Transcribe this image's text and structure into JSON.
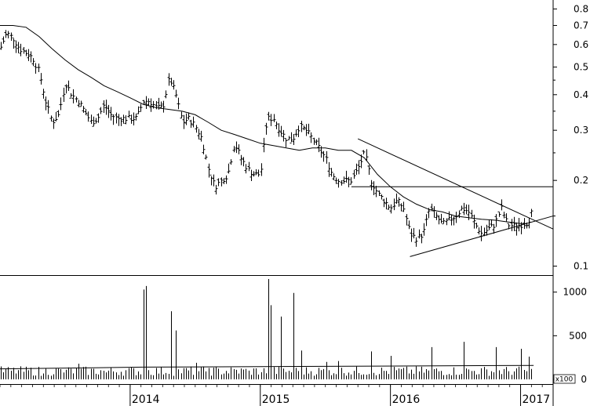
{
  "chart_data": {
    "type": "ohlc",
    "price_axis": {
      "scale": "log",
      "range": [
        0.093,
        0.86
      ],
      "ticks": [
        {
          "value": 0.1,
          "label": "0.1"
        },
        {
          "value": 0.2,
          "label": "0.2"
        },
        {
          "value": 0.3,
          "label": "0.3"
        },
        {
          "value": 0.4,
          "label": "0.4"
        },
        {
          "value": 0.5,
          "label": "0.5"
        },
        {
          "value": 0.6,
          "label": "0.6"
        },
        {
          "value": 0.7,
          "label": "0.7"
        },
        {
          "value": 0.8,
          "label": "0.8"
        }
      ]
    },
    "volume_axis": {
      "range": [
        0,
        1150
      ],
      "ticks": [
        {
          "value": 0,
          "label": "0"
        },
        {
          "value": 500,
          "label": "500"
        },
        {
          "value": 1000,
          "label": "1000"
        }
      ],
      "multiplier_label": "x100"
    },
    "time_axis": {
      "start": 2013.0,
      "end": 2017.25,
      "year_labels": [
        {
          "value": 2014,
          "label": "2014"
        },
        {
          "value": 2015,
          "label": "2015"
        },
        {
          "value": 2016,
          "label": "2016"
        },
        {
          "value": 2017,
          "label": "2017"
        }
      ]
    },
    "close_series": [
      [
        2013.0,
        0.58
      ],
      [
        2013.05,
        0.66
      ],
      [
        2013.1,
        0.63
      ],
      [
        2013.15,
        0.58
      ],
      [
        2013.2,
        0.56
      ],
      [
        2013.25,
        0.54
      ],
      [
        2013.3,
        0.48
      ],
      [
        2013.35,
        0.38
      ],
      [
        2013.4,
        0.32
      ],
      [
        2013.45,
        0.34
      ],
      [
        2013.5,
        0.44
      ],
      [
        2013.55,
        0.4
      ],
      [
        2013.6,
        0.38
      ],
      [
        2013.65,
        0.35
      ],
      [
        2013.7,
        0.32
      ],
      [
        2013.75,
        0.33
      ],
      [
        2013.8,
        0.37
      ],
      [
        2013.85,
        0.34
      ],
      [
        2013.9,
        0.33
      ],
      [
        2013.95,
        0.33
      ],
      [
        2014.0,
        0.33
      ],
      [
        2014.05,
        0.33
      ],
      [
        2014.1,
        0.38
      ],
      [
        2014.15,
        0.38
      ],
      [
        2014.2,
        0.36
      ],
      [
        2014.25,
        0.36
      ],
      [
        2014.3,
        0.46
      ],
      [
        2014.35,
        0.4
      ],
      [
        2014.4,
        0.32
      ],
      [
        2014.45,
        0.33
      ],
      [
        2014.5,
        0.31
      ],
      [
        2014.55,
        0.28
      ],
      [
        2014.6,
        0.22
      ],
      [
        2014.65,
        0.19
      ],
      [
        2014.7,
        0.2
      ],
      [
        2014.75,
        0.21
      ],
      [
        2014.8,
        0.27
      ],
      [
        2014.85,
        0.24
      ],
      [
        2014.9,
        0.22
      ],
      [
        2014.95,
        0.21
      ],
      [
        2015.0,
        0.21
      ],
      [
        2015.05,
        0.33
      ],
      [
        2015.1,
        0.33
      ],
      [
        2015.15,
        0.3
      ],
      [
        2015.2,
        0.28
      ],
      [
        2015.25,
        0.28
      ],
      [
        2015.3,
        0.31
      ],
      [
        2015.35,
        0.3
      ],
      [
        2015.4,
        0.28
      ],
      [
        2015.45,
        0.26
      ],
      [
        2015.5,
        0.24
      ],
      [
        2015.55,
        0.21
      ],
      [
        2015.6,
        0.2
      ],
      [
        2015.65,
        0.2
      ],
      [
        2015.7,
        0.2
      ],
      [
        2015.75,
        0.22
      ],
      [
        2015.8,
        0.25
      ],
      [
        2015.85,
        0.2
      ],
      [
        2015.9,
        0.18
      ],
      [
        2015.95,
        0.17
      ],
      [
        2016.0,
        0.16
      ],
      [
        2016.05,
        0.17
      ],
      [
        2016.1,
        0.16
      ],
      [
        2016.15,
        0.13
      ],
      [
        2016.2,
        0.125
      ],
      [
        2016.25,
        0.13
      ],
      [
        2016.3,
        0.16
      ],
      [
        2016.35,
        0.15
      ],
      [
        2016.4,
        0.14
      ],
      [
        2016.45,
        0.145
      ],
      [
        2016.5,
        0.15
      ],
      [
        2016.55,
        0.16
      ],
      [
        2016.6,
        0.155
      ],
      [
        2016.65,
        0.14
      ],
      [
        2016.7,
        0.13
      ],
      [
        2016.75,
        0.135
      ],
      [
        2016.8,
        0.14
      ],
      [
        2016.85,
        0.16
      ],
      [
        2016.9,
        0.14
      ],
      [
        2016.95,
        0.138
      ],
      [
        2017.0,
        0.14
      ],
      [
        2017.05,
        0.142
      ],
      [
        2017.1,
        0.16
      ]
    ],
    "moving_average": [
      [
        2013.0,
        0.7
      ],
      [
        2013.1,
        0.7
      ],
      [
        2013.2,
        0.69
      ],
      [
        2013.3,
        0.64
      ],
      [
        2013.4,
        0.58
      ],
      [
        2013.5,
        0.53
      ],
      [
        2013.6,
        0.49
      ],
      [
        2013.7,
        0.46
      ],
      [
        2013.8,
        0.43
      ],
      [
        2013.9,
        0.41
      ],
      [
        2014.0,
        0.39
      ],
      [
        2014.1,
        0.37
      ],
      [
        2014.2,
        0.36
      ],
      [
        2014.3,
        0.355
      ],
      [
        2014.4,
        0.35
      ],
      [
        2014.5,
        0.34
      ],
      [
        2014.6,
        0.32
      ],
      [
        2014.7,
        0.3
      ],
      [
        2014.8,
        0.29
      ],
      [
        2014.9,
        0.28
      ],
      [
        2015.0,
        0.27
      ],
      [
        2015.1,
        0.265
      ],
      [
        2015.2,
        0.26
      ],
      [
        2015.3,
        0.255
      ],
      [
        2015.4,
        0.26
      ],
      [
        2015.5,
        0.26
      ],
      [
        2015.6,
        0.255
      ],
      [
        2015.7,
        0.255
      ],
      [
        2015.8,
        0.24
      ],
      [
        2015.9,
        0.21
      ],
      [
        2016.0,
        0.19
      ],
      [
        2016.1,
        0.175
      ],
      [
        2016.2,
        0.165
      ],
      [
        2016.3,
        0.158
      ],
      [
        2016.4,
        0.155
      ],
      [
        2016.5,
        0.15
      ],
      [
        2016.6,
        0.148
      ],
      [
        2016.7,
        0.146
      ],
      [
        2016.8,
        0.145
      ],
      [
        2016.9,
        0.143
      ],
      [
        2017.0,
        0.141
      ],
      [
        2017.05,
        0.141
      ]
    ],
    "trendlines": [
      {
        "from": [
          2015.75,
          0.28
        ],
        "to": [
          2017.25,
          0.135
        ]
      },
      {
        "from": [
          2016.15,
          0.108
        ],
        "to": [
          2017.25,
          0.15
        ]
      },
      {
        "from": [
          2015.7,
          0.19
        ],
        "to": [
          2017.25,
          0.19
        ]
      }
    ],
    "volume_spikes": [
      [
        2013.3,
        40
      ],
      [
        2013.5,
        110
      ],
      [
        2013.6,
        180
      ],
      [
        2013.8,
        80
      ],
      [
        2014.1,
        1030
      ],
      [
        2014.12,
        1070
      ],
      [
        2014.3,
        780
      ],
      [
        2014.35,
        560
      ],
      [
        2014.5,
        190
      ],
      [
        2014.6,
        130
      ],
      [
        2014.9,
        100
      ],
      [
        2015.05,
        1150
      ],
      [
        2015.07,
        850
      ],
      [
        2015.15,
        720
      ],
      [
        2015.25,
        990
      ],
      [
        2015.3,
        330
      ],
      [
        2015.5,
        200
      ],
      [
        2015.6,
        210
      ],
      [
        2015.85,
        320
      ],
      [
        2016.0,
        270
      ],
      [
        2016.3,
        370
      ],
      [
        2016.55,
        430
      ],
      [
        2016.8,
        370
      ],
      [
        2017.0,
        350
      ],
      [
        2017.05,
        260
      ]
    ],
    "volume_average": 140
  }
}
